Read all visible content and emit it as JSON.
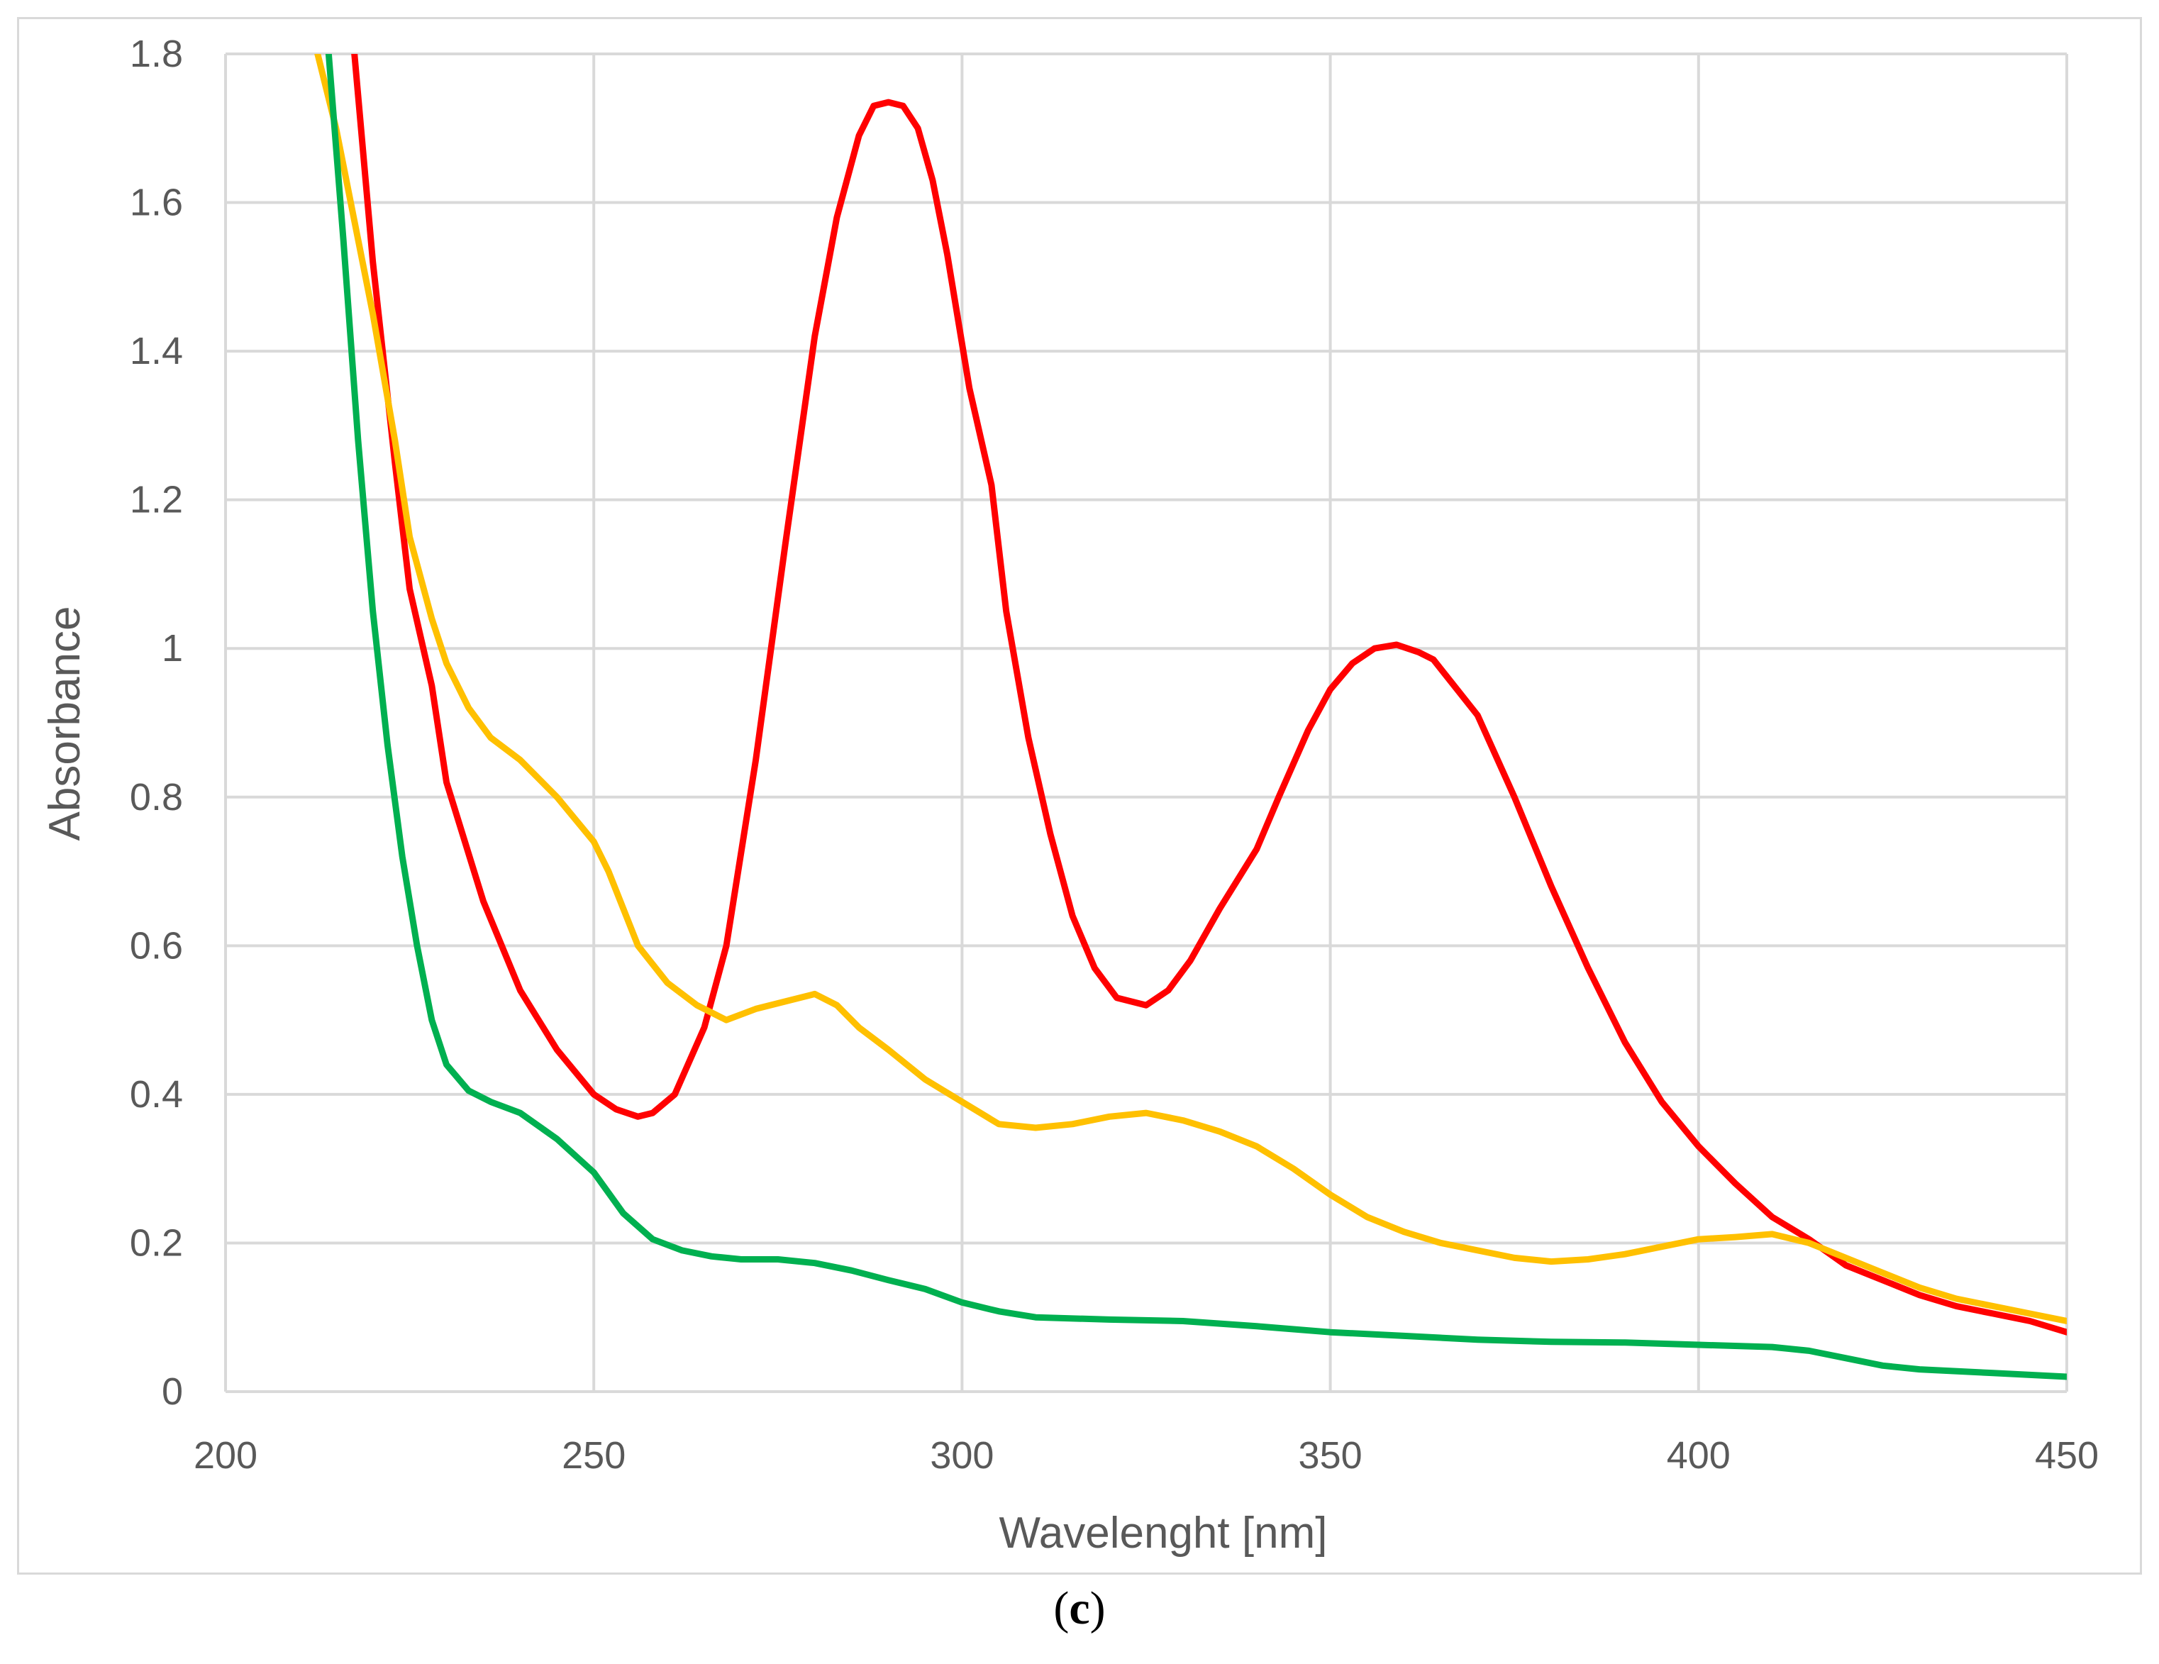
{
  "chart_data": {
    "type": "line",
    "title": "",
    "xlabel": "Wavelenght [nm]",
    "ylabel": "Absorbance",
    "xlim": [
      200,
      450
    ],
    "ylim": [
      0,
      1.8
    ],
    "x_ticks": [
      "200",
      "250",
      "300",
      "350",
      "400",
      "450"
    ],
    "y_ticks": [
      "0",
      "0.2",
      "0.4",
      "0.6",
      "0.8",
      "1",
      "1.2",
      "1.4",
      "1.6",
      "1.8"
    ],
    "grid": true,
    "legend": "none",
    "series": [
      {
        "color": "#ff0000",
        "points": [
          [
            217.5,
            1.8
          ],
          [
            220,
            1.52
          ],
          [
            223,
            1.25
          ],
          [
            225,
            1.08
          ],
          [
            228,
            0.95
          ],
          [
            230,
            0.82
          ],
          [
            235,
            0.66
          ],
          [
            240,
            0.54
          ],
          [
            245,
            0.46
          ],
          [
            250,
            0.4
          ],
          [
            253,
            0.38
          ],
          [
            256,
            0.37
          ],
          [
            258,
            0.375
          ],
          [
            261,
            0.4
          ],
          [
            265,
            0.49
          ],
          [
            268,
            0.6
          ],
          [
            272,
            0.85
          ],
          [
            276,
            1.14
          ],
          [
            280,
            1.42
          ],
          [
            283,
            1.58
          ],
          [
            286,
            1.69
          ],
          [
            288,
            1.73
          ],
          [
            290,
            1.735
          ],
          [
            292,
            1.73
          ],
          [
            294,
            1.7
          ],
          [
            296,
            1.63
          ],
          [
            298,
            1.53
          ],
          [
            301,
            1.35
          ],
          [
            304,
            1.22
          ],
          [
            306,
            1.05
          ],
          [
            309,
            0.88
          ],
          [
            312,
            0.75
          ],
          [
            315,
            0.64
          ],
          [
            318,
            0.57
          ],
          [
            321,
            0.53
          ],
          [
            325,
            0.52
          ],
          [
            328,
            0.54
          ],
          [
            331,
            0.58
          ],
          [
            335,
            0.65
          ],
          [
            340,
            0.73
          ],
          [
            343,
            0.8
          ],
          [
            347,
            0.89
          ],
          [
            350,
            0.945
          ],
          [
            353,
            0.98
          ],
          [
            356,
            1.0
          ],
          [
            359,
            1.005
          ],
          [
            362,
            0.995
          ],
          [
            364,
            0.985
          ],
          [
            366,
            0.96
          ],
          [
            370,
            0.91
          ],
          [
            375,
            0.8
          ],
          [
            380,
            0.68
          ],
          [
            385,
            0.57
          ],
          [
            390,
            0.47
          ],
          [
            395,
            0.39
          ],
          [
            400,
            0.33
          ],
          [
            405,
            0.28
          ],
          [
            410,
            0.235
          ],
          [
            415,
            0.205
          ],
          [
            420,
            0.17
          ],
          [
            425,
            0.15
          ],
          [
            430,
            0.13
          ],
          [
            435,
            0.115
          ],
          [
            440,
            0.105
          ],
          [
            445,
            0.095
          ],
          [
            450,
            0.08
          ]
        ]
      },
      {
        "color": "#ffc000",
        "points": [
          [
            212.5,
            1.8
          ],
          [
            215,
            1.7
          ],
          [
            218,
            1.55
          ],
          [
            220,
            1.45
          ],
          [
            223,
            1.28
          ],
          [
            225,
            1.15
          ],
          [
            228,
            1.04
          ],
          [
            230,
            0.98
          ],
          [
            233,
            0.92
          ],
          [
            236,
            0.88
          ],
          [
            240,
            0.85
          ],
          [
            245,
            0.8
          ],
          [
            250,
            0.74
          ],
          [
            252,
            0.7
          ],
          [
            256,
            0.6
          ],
          [
            260,
            0.55
          ],
          [
            264,
            0.52
          ],
          [
            268,
            0.5
          ],
          [
            272,
            0.515
          ],
          [
            276,
            0.525
          ],
          [
            280,
            0.535
          ],
          [
            283,
            0.52
          ],
          [
            286,
            0.49
          ],
          [
            290,
            0.46
          ],
          [
            295,
            0.42
          ],
          [
            300,
            0.39
          ],
          [
            305,
            0.36
          ],
          [
            310,
            0.355
          ],
          [
            315,
            0.36
          ],
          [
            320,
            0.37
          ],
          [
            325,
            0.375
          ],
          [
            330,
            0.365
          ],
          [
            335,
            0.35
          ],
          [
            340,
            0.33
          ],
          [
            345,
            0.3
          ],
          [
            350,
            0.265
          ],
          [
            355,
            0.235
          ],
          [
            360,
            0.215
          ],
          [
            365,
            0.2
          ],
          [
            370,
            0.19
          ],
          [
            375,
            0.18
          ],
          [
            380,
            0.175
          ],
          [
            385,
            0.178
          ],
          [
            390,
            0.185
          ],
          [
            395,
            0.195
          ],
          [
            400,
            0.205
          ],
          [
            405,
            0.208
          ],
          [
            410,
            0.212
          ],
          [
            415,
            0.2
          ],
          [
            420,
            0.18
          ],
          [
            425,
            0.16
          ],
          [
            430,
            0.14
          ],
          [
            435,
            0.125
          ],
          [
            440,
            0.115
          ],
          [
            445,
            0.105
          ],
          [
            450,
            0.095
          ]
        ]
      },
      {
        "color": "#00b050",
        "points": [
          [
            214,
            1.8
          ],
          [
            216,
            1.55
          ],
          [
            218,
            1.28
          ],
          [
            220,
            1.05
          ],
          [
            222,
            0.87
          ],
          [
            224,
            0.72
          ],
          [
            226,
            0.6
          ],
          [
            228,
            0.5
          ],
          [
            230,
            0.44
          ],
          [
            233,
            0.405
          ],
          [
            236,
            0.39
          ],
          [
            240,
            0.375
          ],
          [
            245,
            0.34
          ],
          [
            250,
            0.295
          ],
          [
            254,
            0.24
          ],
          [
            258,
            0.205
          ],
          [
            262,
            0.19
          ],
          [
            266,
            0.182
          ],
          [
            270,
            0.178
          ],
          [
            275,
            0.178
          ],
          [
            280,
            0.173
          ],
          [
            285,
            0.163
          ],
          [
            290,
            0.15
          ],
          [
            295,
            0.138
          ],
          [
            300,
            0.12
          ],
          [
            305,
            0.108
          ],
          [
            310,
            0.1
          ],
          [
            320,
            0.097
          ],
          [
            330,
            0.095
          ],
          [
            340,
            0.088
          ],
          [
            350,
            0.08
          ],
          [
            360,
            0.075
          ],
          [
            370,
            0.07
          ],
          [
            380,
            0.067
          ],
          [
            390,
            0.066
          ],
          [
            400,
            0.063
          ],
          [
            410,
            0.06
          ],
          [
            415,
            0.055
          ],
          [
            420,
            0.045
          ],
          [
            425,
            0.035
          ],
          [
            430,
            0.03
          ],
          [
            440,
            0.025
          ],
          [
            450,
            0.02
          ]
        ]
      }
    ]
  },
  "caption": {
    "open": "(",
    "letter": "c",
    "close": ")"
  }
}
